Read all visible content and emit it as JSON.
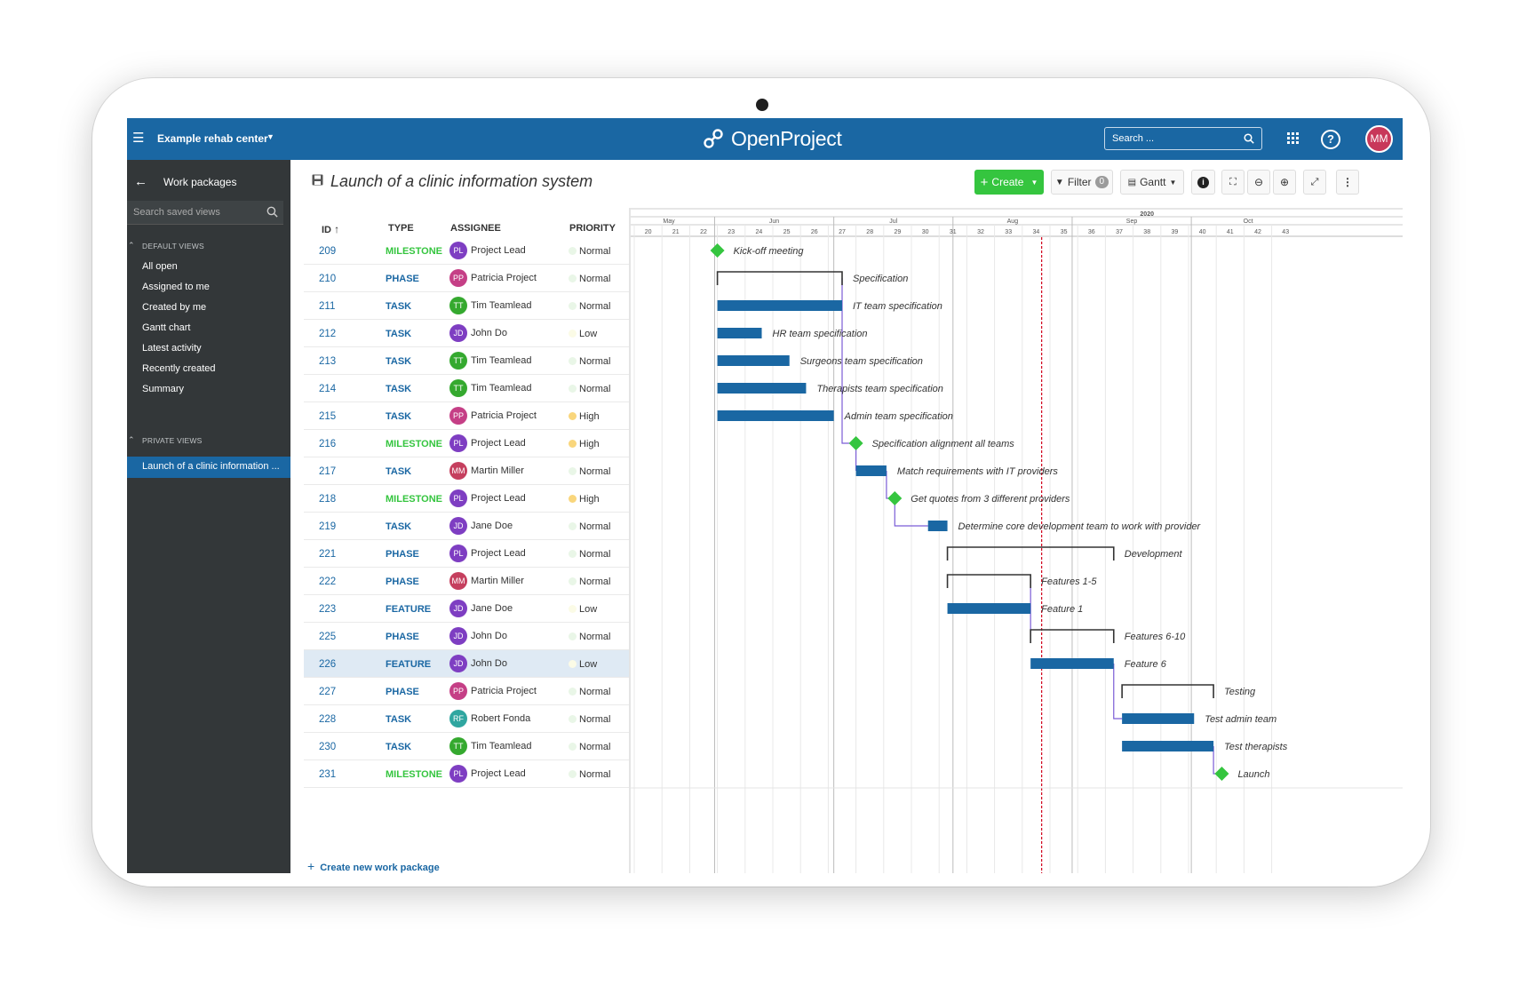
{
  "header": {
    "project": "Example rehab center",
    "logo_text": "OpenProject",
    "search_placeholder": "Search ...",
    "avatar": "MM",
    "help": "?"
  },
  "sidebar": {
    "title": "Work packages",
    "search_placeholder": "Search saved views",
    "default_views_label": "DEFAULT VIEWS",
    "default_views": [
      "All open",
      "Assigned to me",
      "Created by me",
      "Gantt chart",
      "Latest activity",
      "Recently created",
      "Summary"
    ],
    "private_views_label": "PRIVATE VIEWS",
    "private_views": [
      "Launch of a clinic information ..."
    ]
  },
  "toolbar": {
    "title": "Launch of a clinic information system",
    "create_label": "Create",
    "filter_label": "Filter",
    "filter_count": "0",
    "gantt_label": "Gantt"
  },
  "table": {
    "columns": {
      "id": "ID",
      "type": "TYPE",
      "assignee": "ASSIGNEE",
      "priority": "PRIORITY"
    },
    "rows": [
      {
        "id": "209",
        "type": "MILESTONE",
        "initials": "PL",
        "assignee": "Project Lead",
        "priority": "Normal"
      },
      {
        "id": "210",
        "type": "PHASE",
        "initials": "PP",
        "assignee": "Patricia Project",
        "priority": "Normal"
      },
      {
        "id": "211",
        "type": "TASK",
        "initials": "TT",
        "assignee": "Tim Teamlead",
        "priority": "Normal"
      },
      {
        "id": "212",
        "type": "TASK",
        "initials": "JD",
        "assignee": "John Do",
        "priority": "Low"
      },
      {
        "id": "213",
        "type": "TASK",
        "initials": "TT",
        "assignee": "Tim Teamlead",
        "priority": "Normal"
      },
      {
        "id": "214",
        "type": "TASK",
        "initials": "TT",
        "assignee": "Tim Teamlead",
        "priority": "Normal"
      },
      {
        "id": "215",
        "type": "TASK",
        "initials": "PP",
        "assignee": "Patricia Project",
        "priority": "High"
      },
      {
        "id": "216",
        "type": "MILESTONE",
        "initials": "PL",
        "assignee": "Project Lead",
        "priority": "High"
      },
      {
        "id": "217",
        "type": "TASK",
        "initials": "MM",
        "assignee": "Martin Miller",
        "priority": "Normal"
      },
      {
        "id": "218",
        "type": "MILESTONE",
        "initials": "PL",
        "assignee": "Project Lead",
        "priority": "High"
      },
      {
        "id": "219",
        "type": "TASK",
        "initials": "JD",
        "assignee": "Jane Doe",
        "priority": "Normal"
      },
      {
        "id": "221",
        "type": "PHASE",
        "initials": "PL",
        "assignee": "Project Lead",
        "priority": "Normal"
      },
      {
        "id": "222",
        "type": "PHASE",
        "initials": "MM",
        "assignee": "Martin Miller",
        "priority": "Normal"
      },
      {
        "id": "223",
        "type": "FEATURE",
        "initials": "JD",
        "assignee": "Jane Doe",
        "priority": "Low"
      },
      {
        "id": "225",
        "type": "PHASE",
        "initials": "JD",
        "assignee": "John Do",
        "priority": "Normal"
      },
      {
        "id": "226",
        "type": "FEATURE",
        "initials": "JD",
        "assignee": "John Do",
        "priority": "Low"
      },
      {
        "id": "227",
        "type": "PHASE",
        "initials": "PP",
        "assignee": "Patricia Project",
        "priority": "Normal"
      },
      {
        "id": "228",
        "type": "TASK",
        "initials": "RF",
        "assignee": "Robert Fonda",
        "priority": "Normal"
      },
      {
        "id": "230",
        "type": "TASK",
        "initials": "TT",
        "assignee": "Tim Teamlead",
        "priority": "Normal"
      },
      {
        "id": "231",
        "type": "MILESTONE",
        "initials": "PL",
        "assignee": "Project Lead",
        "priority": "Normal"
      }
    ],
    "selected_row": "226",
    "create_new": "Create new work package"
  },
  "colors": {
    "brand": "#1a67a3",
    "sidebar": "#333739",
    "create": "#35c53f",
    "milestone": "#35c53f",
    "bar": "#1a67a3",
    "today_line": "#d0021b",
    "type_milestone": "#35c53f",
    "type_other": "#1a67a3",
    "priority_normal": "#e9f6e7",
    "priority_low": "#fbfbe6",
    "priority_high": "#f9d67c",
    "avatars": {
      "PL": "#7e3ec2",
      "PP": "#c53f86",
      "TT": "#35a92f",
      "JD": "#7e3ec2",
      "MM": "#c53f5e",
      "RF": "#2fa6a0"
    }
  },
  "gantt": {
    "year": "2020",
    "months": [
      "May",
      "Jun",
      "Jul",
      "Aug",
      "Sep",
      "Oct"
    ],
    "weeks": [
      "20",
      "21",
      "22",
      "23",
      "24",
      "25",
      "26",
      "27",
      "28",
      "29",
      "30",
      "31",
      "32",
      "33",
      "34",
      "35",
      "36",
      "37",
      "38",
      "39",
      "40",
      "41",
      "42",
      "43"
    ],
    "items": [
      {
        "label": "Kick-off meeting",
        "kind": "milestone",
        "start": 23.0
      },
      {
        "label": "Specification",
        "kind": "phase",
        "start": 23.0,
        "end": 27.5
      },
      {
        "label": "IT team specification",
        "kind": "bar",
        "start": 23.0,
        "end": 27.5
      },
      {
        "label": "HR team specification",
        "kind": "bar",
        "start": 23.0,
        "end": 24.6
      },
      {
        "label": "Surgeons team specification",
        "kind": "bar",
        "start": 23.0,
        "end": 25.6
      },
      {
        "label": "Therapists team specification",
        "kind": "bar",
        "start": 23.0,
        "end": 26.2
      },
      {
        "label": "Admin team specification",
        "kind": "bar",
        "start": 23.0,
        "end": 27.2
      },
      {
        "label": "Specification alignment all teams",
        "kind": "milestone",
        "start": 28.0
      },
      {
        "label": "Match requirements with IT providers",
        "kind": "bar",
        "start": 28.0,
        "end": 29.1
      },
      {
        "label": "Get quotes from 3 different providers",
        "kind": "milestone",
        "start": 29.4
      },
      {
        "label": "Determine core development team to work with provider",
        "kind": "bar",
        "start": 30.6,
        "end": 31.3
      },
      {
        "label": "Development",
        "kind": "phase",
        "start": 31.3,
        "end": 37.3
      },
      {
        "label": "Features 1-5",
        "kind": "phase",
        "start": 31.3,
        "end": 34.3
      },
      {
        "label": "Feature 1",
        "kind": "bar",
        "start": 31.3,
        "end": 34.3
      },
      {
        "label": "Features 6-10",
        "kind": "phase",
        "start": 34.3,
        "end": 37.3
      },
      {
        "label": "Feature 6",
        "kind": "bar",
        "start": 34.3,
        "end": 37.3
      },
      {
        "label": "Testing",
        "kind": "phase",
        "start": 37.6,
        "end": 40.9
      },
      {
        "label": "Test admin team",
        "kind": "bar",
        "start": 37.6,
        "end": 40.2
      },
      {
        "label": "Test therapists",
        "kind": "bar",
        "start": 37.6,
        "end": 40.9
      },
      {
        "label": "Launch",
        "kind": "milestone",
        "start": 41.2
      }
    ],
    "today_week": 34.7
  }
}
